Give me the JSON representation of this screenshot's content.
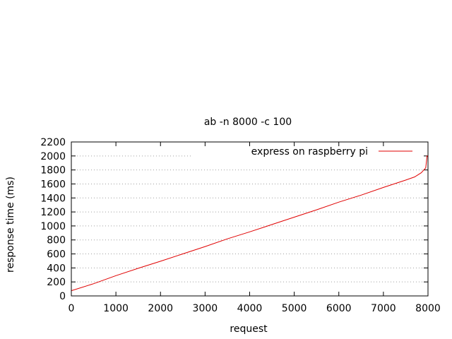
{
  "chart_data": {
    "type": "line",
    "title": "ab -n 8000 -c 100",
    "xlabel": "request",
    "ylabel": "response time (ms)",
    "xlim": [
      0,
      8000
    ],
    "ylim": [
      0,
      2200
    ],
    "xticks": [
      0,
      1000,
      2000,
      3000,
      4000,
      5000,
      6000,
      7000,
      8000
    ],
    "yticks": [
      0,
      200,
      400,
      600,
      800,
      1000,
      1200,
      1400,
      1600,
      1800,
      2000,
      2200
    ],
    "grid": true,
    "legend_position": "top-right",
    "series": [
      {
        "name": "express on raspberry pi",
        "color": "#e00000",
        "x": [
          0,
          500,
          1000,
          1500,
          2000,
          2500,
          3000,
          3500,
          4000,
          4500,
          5000,
          5500,
          6000,
          6500,
          7000,
          7500,
          7700,
          7850,
          7950,
          7980,
          8000
        ],
        "y": [
          75,
          175,
          290,
          395,
          495,
          600,
          705,
          815,
          915,
          1020,
          1125,
          1230,
          1340,
          1440,
          1550,
          1655,
          1700,
          1760,
          1830,
          2000,
          1990
        ]
      }
    ]
  }
}
